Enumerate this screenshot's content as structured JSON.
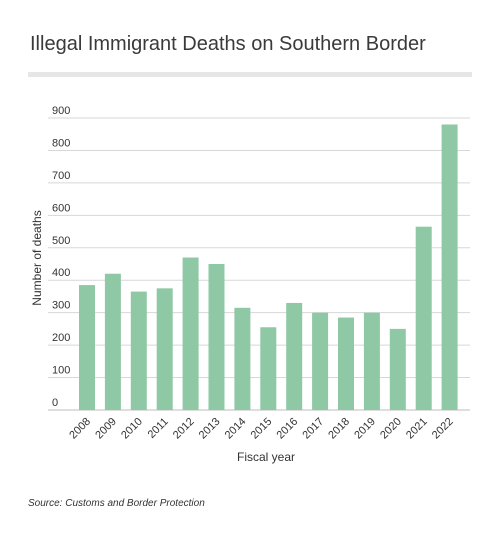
{
  "header": {
    "title": "Illegal Immigrant Deaths on Southern Border"
  },
  "footer": {
    "source": "Source: Customs and Border Protection"
  },
  "chart_data": {
    "type": "bar",
    "title": "Illegal Immigrant Deaths on Southern Border",
    "xlabel": "Fiscal year",
    "ylabel": "Number of deaths",
    "ylim": [
      0,
      900
    ],
    "yticks": [
      0,
      100,
      200,
      300,
      400,
      500,
      600,
      700,
      800,
      900
    ],
    "grid": true,
    "legend": "none",
    "categories": [
      "2008",
      "2009",
      "2010",
      "2011",
      "2012",
      "2013",
      "2014",
      "2015",
      "2016",
      "2017",
      "2018",
      "2019",
      "2020",
      "2021",
      "2022"
    ],
    "values": [
      385,
      420,
      365,
      375,
      470,
      450,
      315,
      255,
      330,
      300,
      285,
      300,
      250,
      565,
      880
    ],
    "colors": {
      "bar": "#8ec8a4",
      "grid": "#d7d7d7",
      "text": "#333333"
    }
  }
}
